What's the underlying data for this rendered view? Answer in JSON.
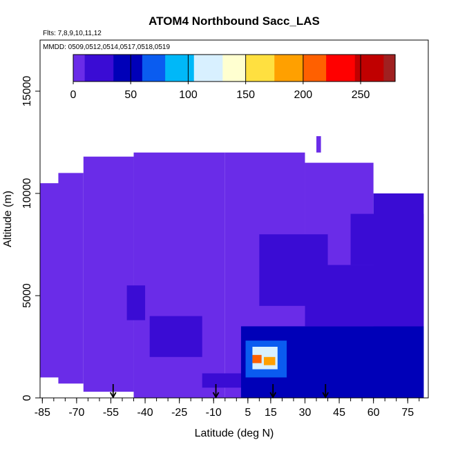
{
  "chart_data": {
    "type": "heatmap",
    "title": "ATOM4 Northbound Sacc_LAS",
    "annotations": [
      "Flts: 7,8,9,10,11,12",
      "MMDD: 0509,0512,0514,0517,0518,0519"
    ],
    "xlabel": "Latitude (deg N)",
    "ylabel": "Altitude (m)",
    "xlim": [
      -86,
      84
    ],
    "ylim": [
      0,
      17500
    ],
    "x_ticks": [
      -85,
      -70,
      -55,
      -40,
      -25,
      -10,
      5,
      15,
      30,
      45,
      60,
      75
    ],
    "y_ticks": [
      0,
      5000,
      10000,
      15000
    ],
    "colorbar": {
      "range": [
        0,
        280
      ],
      "ticks": [
        0,
        50,
        100,
        150,
        200,
        250
      ],
      "colors": [
        "#6a2ce8",
        "#3a0cd4",
        "#0000b8",
        "#0a5cf0",
        "#00b8f8",
        "#d8f0ff",
        "#ffffd0",
        "#ffe040",
        "#ffa000",
        "#ff6000",
        "#ff0000",
        "#c00000",
        "#a02020"
      ]
    },
    "flight_markers_lat": [
      -54,
      -9,
      16,
      39
    ],
    "regions": [
      {
        "lat": [
          -86,
          -75
        ],
        "alt": [
          1000,
          10500
        ],
        "value": 8
      },
      {
        "lat": [
          -78,
          -67
        ],
        "alt": [
          700,
          11000
        ],
        "value": 8
      },
      {
        "lat": [
          -67,
          -45
        ],
        "alt": [
          300,
          11800
        ],
        "value": 9
      },
      {
        "lat": [
          -45,
          -5
        ],
        "alt": [
          0,
          12000
        ],
        "value": 10
      },
      {
        "lat": [
          -5,
          30
        ],
        "alt": [
          0,
          12000
        ],
        "value": 11
      },
      {
        "lat": [
          30,
          60
        ],
        "alt": [
          0,
          11500
        ],
        "value": 10
      },
      {
        "lat": [
          60,
          82
        ],
        "alt": [
          0,
          10000
        ],
        "value": 12
      },
      {
        "lat": [
          -30,
          -8
        ],
        "alt": [
          3000,
          10500
        ],
        "value": 8
      },
      {
        "lat": [
          35,
          37
        ],
        "alt": [
          12000,
          12800
        ],
        "value": 10
      },
      {
        "lat": [
          -48,
          -40
        ],
        "alt": [
          3800,
          5500
        ],
        "value": 25
      },
      {
        "lat": [
          -38,
          -15
        ],
        "alt": [
          2000,
          4000
        ],
        "value": 20
      },
      {
        "lat": [
          -15,
          20
        ],
        "alt": [
          500,
          1200
        ],
        "value": 20
      },
      {
        "lat": [
          2,
          82
        ],
        "alt": [
          0,
          3500
        ],
        "value": 40
      },
      {
        "lat": [
          30,
          82
        ],
        "alt": [
          3500,
          6500
        ],
        "value": 30
      },
      {
        "lat": [
          50,
          82
        ],
        "alt": [
          6500,
          9000
        ],
        "value": 28
      },
      {
        "lat": [
          10,
          40
        ],
        "alt": [
          4500,
          8000
        ],
        "value": 22
      },
      {
        "lat": [
          4,
          22
        ],
        "alt": [
          1000,
          2800
        ],
        "value": 80
      },
      {
        "lat": [
          7,
          18
        ],
        "alt": [
          1400,
          2500
        ],
        "value": 110
      },
      {
        "lat": [
          7,
          11
        ],
        "alt": [
          1700,
          2100
        ],
        "value": 200
      },
      {
        "lat": [
          12,
          17
        ],
        "alt": [
          1600,
          2000
        ],
        "value": 190
      }
    ]
  }
}
